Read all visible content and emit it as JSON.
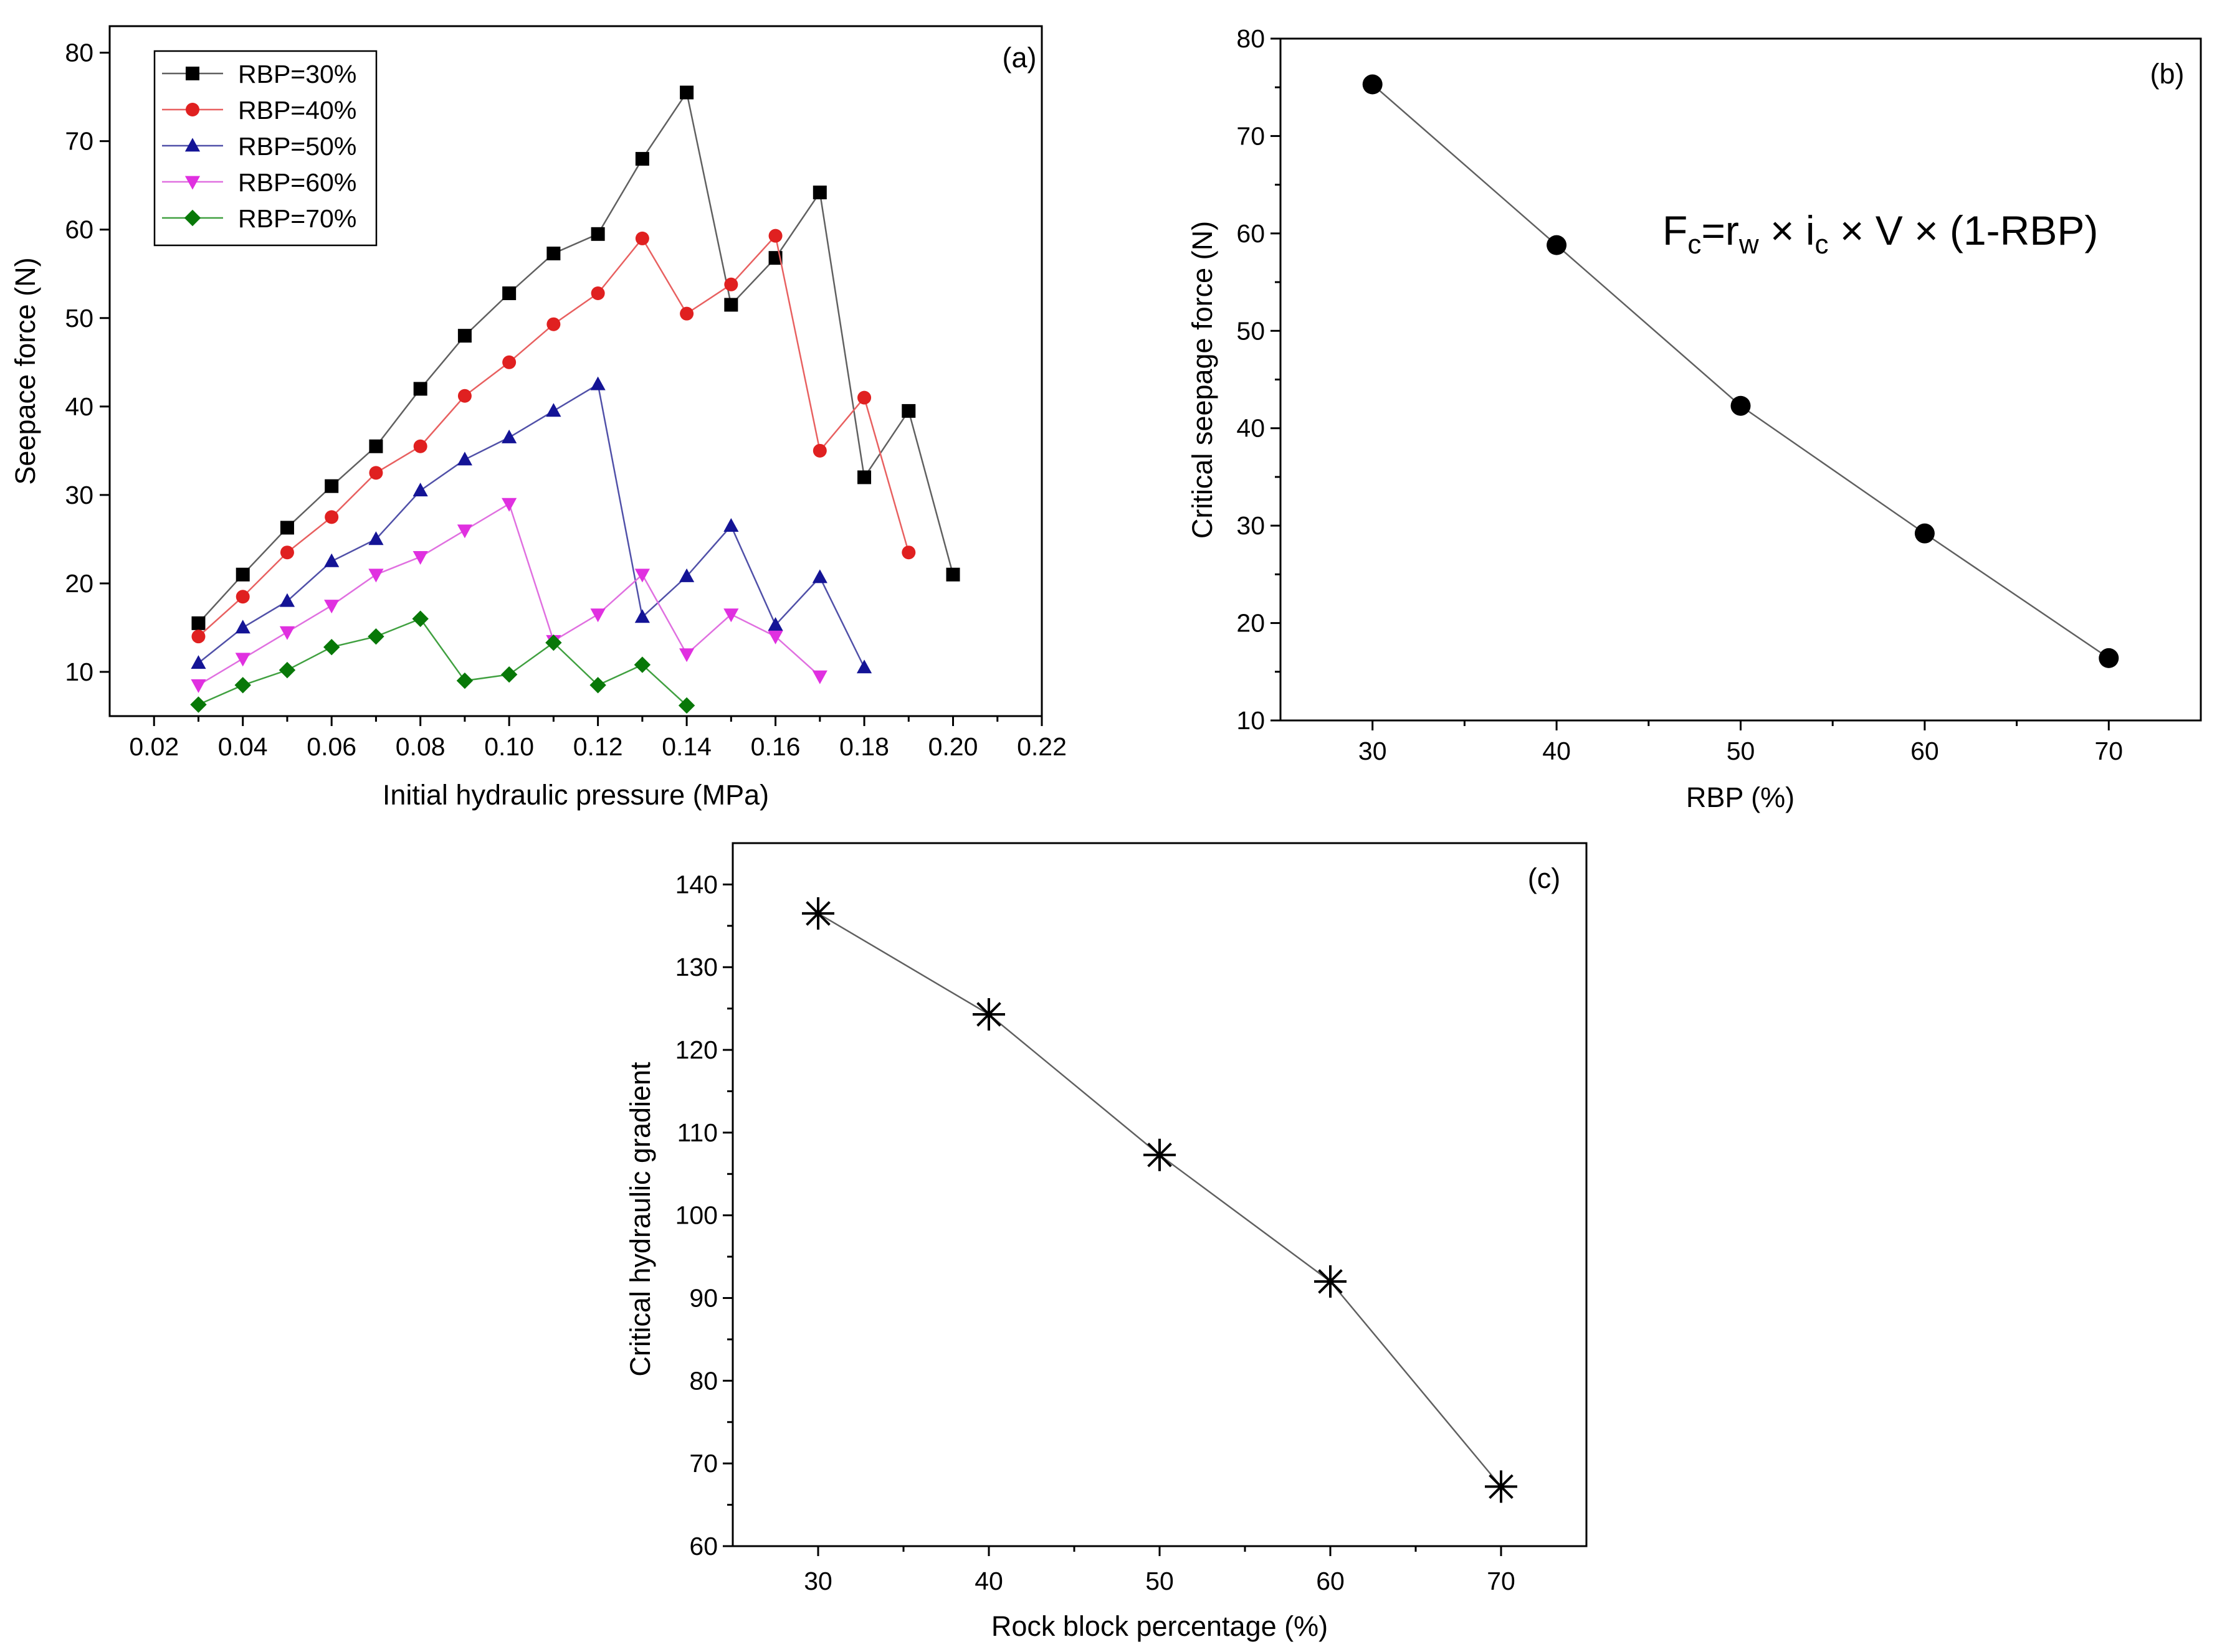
{
  "chart_data": [
    {
      "id": "a",
      "type": "line",
      "panel_label": "(a)",
      "xlabel": "Initial hydraulic pressure (MPa)",
      "ylabel": "Seepace force (N)",
      "xlim": [
        0.01,
        0.22
      ],
      "ylim": [
        5,
        83
      ],
      "xticks": [
        0.02,
        0.04,
        0.06,
        0.08,
        0.1,
        0.12,
        0.14,
        0.16,
        0.18,
        0.2,
        0.22
      ],
      "xtick_labels": [
        "0.02",
        "0.04",
        "0.06",
        "0.08",
        "0.10",
        "0.12",
        "0.14",
        "0.16",
        "0.18",
        "0.20",
        "0.22"
      ],
      "yticks": [
        10,
        20,
        30,
        40,
        50,
        60,
        70,
        80
      ],
      "ytick_labels": [
        "10",
        "20",
        "30",
        "40",
        "50",
        "60",
        "70",
        "80"
      ],
      "legend_position": "top-left",
      "series": [
        {
          "name": "RBP=30%",
          "marker": "square",
          "color": "#000000",
          "line_color": "#606060",
          "x": [
            0.03,
            0.04,
            0.05,
            0.06,
            0.07,
            0.08,
            0.09,
            0.1,
            0.11,
            0.12,
            0.13,
            0.14,
            0.15,
            0.16,
            0.17,
            0.18,
            0.19,
            0.2
          ],
          "y": [
            15.5,
            21,
            26.3,
            31,
            35.5,
            42,
            48,
            52.8,
            57.3,
            59.5,
            68,
            75.5,
            51.5,
            56.8,
            64.2,
            32,
            39.5,
            21
          ]
        },
        {
          "name": "RBP=40%",
          "marker": "circle",
          "color": "#e02020",
          "line_color": "#e86060",
          "x": [
            0.03,
            0.04,
            0.05,
            0.06,
            0.07,
            0.08,
            0.09,
            0.1,
            0.11,
            0.12,
            0.13,
            0.14,
            0.15,
            0.16,
            0.17,
            0.18,
            0.19
          ],
          "y": [
            14,
            18.5,
            23.5,
            27.5,
            32.5,
            35.5,
            41.2,
            45,
            49.3,
            52.8,
            59,
            50.5,
            53.8,
            59.3,
            35,
            41,
            23.5
          ]
        },
        {
          "name": "RBP=50%",
          "marker": "triangle-up",
          "color": "#141496",
          "line_color": "#5050a8",
          "x": [
            0.03,
            0.04,
            0.05,
            0.06,
            0.07,
            0.08,
            0.09,
            0.1,
            0.11,
            0.12,
            0.13,
            0.14,
            0.15,
            0.16,
            0.17,
            0.18
          ],
          "y": [
            11,
            15,
            18,
            22.5,
            25,
            30.5,
            34,
            36.5,
            39.5,
            42.5,
            16.2,
            20.8,
            26.5,
            15.3,
            20.7,
            10.5
          ]
        },
        {
          "name": "RBP=60%",
          "marker": "triangle-down",
          "color": "#e030e0",
          "line_color": "#e070e0",
          "x": [
            0.03,
            0.04,
            0.05,
            0.06,
            0.07,
            0.08,
            0.09,
            0.1,
            0.11,
            0.12,
            0.13,
            0.14,
            0.15,
            0.16,
            0.17
          ],
          "y": [
            8.5,
            11.5,
            14.5,
            17.5,
            21,
            23,
            26,
            29,
            13.5,
            16.5,
            21,
            12,
            16.5,
            14,
            9.5
          ]
        },
        {
          "name": "RBP=70%",
          "marker": "diamond",
          "color": "#087808",
          "line_color": "#40a040",
          "x": [
            0.03,
            0.04,
            0.05,
            0.06,
            0.07,
            0.08,
            0.09,
            0.1,
            0.11,
            0.12,
            0.13,
            0.14
          ],
          "y": [
            6.3,
            8.5,
            10.2,
            12.8,
            14,
            16,
            9,
            9.7,
            13.3,
            8.5,
            10.8,
            6.2
          ]
        }
      ]
    },
    {
      "id": "b",
      "type": "line",
      "panel_label": "(b)",
      "xlabel": "RBP (%)",
      "ylabel": "Critical seepage force (N)",
      "xlim": [
        25,
        75
      ],
      "ylim": [
        10,
        80
      ],
      "xticks": [
        30,
        40,
        50,
        60,
        70
      ],
      "xtick_labels": [
        "30",
        "40",
        "50",
        "60",
        "70"
      ],
      "yticks": [
        10,
        20,
        30,
        40,
        50,
        60,
        70,
        80
      ],
      "ytick_labels": [
        "10",
        "20",
        "30",
        "40",
        "50",
        "60",
        "70",
        "80"
      ],
      "annotation": {
        "F": "F",
        "c1": "c",
        "eq_rw": "=r",
        "w": "w",
        "times_i": " × i",
        "c2": "c",
        "rest": " × V × (1-RBP)"
      },
      "series": [
        {
          "name": "Critical seepage force",
          "marker": "circle",
          "color": "#000000",
          "line_color": "#606060",
          "x": [
            30,
            40,
            50,
            60,
            70
          ],
          "y": [
            75.3,
            58.8,
            42.3,
            29.2,
            16.4
          ]
        }
      ]
    },
    {
      "id": "c",
      "type": "line",
      "panel_label": "(c)",
      "xlabel": "Rock block percentage (%)",
      "ylabel": "Critical hydraulic gradient",
      "xlim": [
        25,
        75
      ],
      "ylim": [
        60,
        145
      ],
      "xticks": [
        30,
        40,
        50,
        60,
        70
      ],
      "xtick_labels": [
        "30",
        "40",
        "50",
        "60",
        "70"
      ],
      "yticks": [
        60,
        70,
        80,
        90,
        100,
        110,
        120,
        130,
        140
      ],
      "ytick_labels": [
        "60",
        "70",
        "80",
        "90",
        "100",
        "110",
        "120",
        "130",
        "140"
      ],
      "series": [
        {
          "name": "Critical hydraulic gradient",
          "marker": "asterisk",
          "color": "#000000",
          "line_color": "#606060",
          "x": [
            30,
            40,
            50,
            60,
            70
          ],
          "y": [
            136.5,
            124.3,
            107.3,
            92,
            67.2
          ]
        }
      ]
    }
  ]
}
